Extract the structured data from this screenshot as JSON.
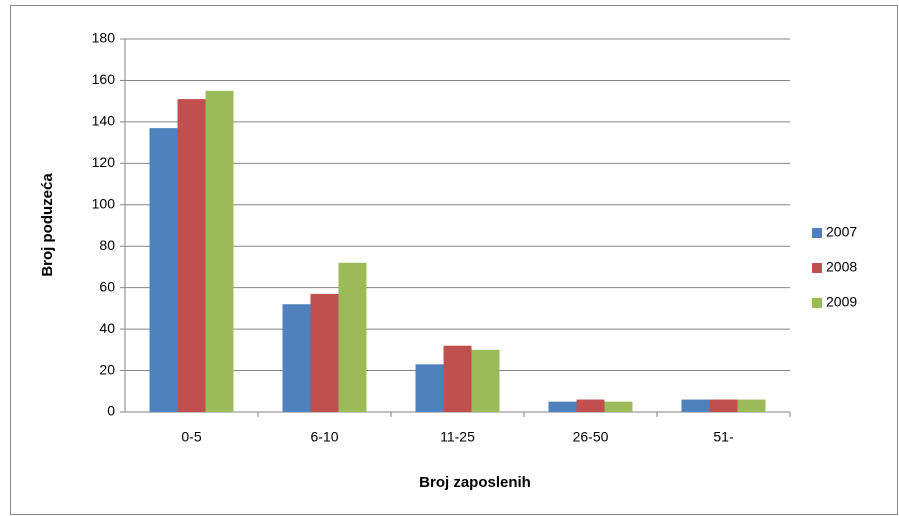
{
  "chart_data": {
    "type": "bar",
    "categories": [
      "0-5",
      "6-10",
      "11-25",
      "26-50",
      "51-"
    ],
    "series": [
      {
        "name": "2007",
        "color": "#4f81bd",
        "values": [
          137,
          52,
          23,
          5,
          6
        ]
      },
      {
        "name": "2008",
        "color": "#c0504d",
        "values": [
          151,
          57,
          32,
          6,
          6
        ]
      },
      {
        "name": "2009",
        "color": "#9bbb59",
        "values": [
          155,
          72,
          30,
          5,
          6
        ]
      }
    ],
    "x_label": "Broj zaposlenih",
    "y_label": "Broj poduzeća",
    "ylim": [
      0,
      180
    ],
    "yticks": [
      0,
      20,
      40,
      60,
      80,
      100,
      120,
      140,
      160,
      180
    ],
    "grid": true,
    "legend": "right"
  }
}
